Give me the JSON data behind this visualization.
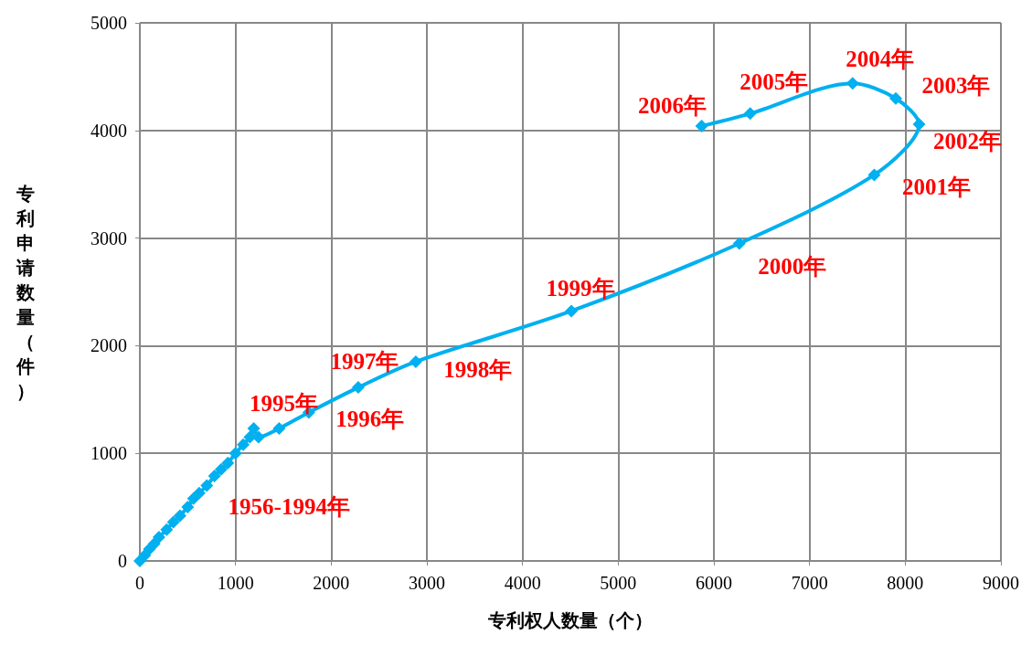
{
  "chart_data": {
    "type": "line",
    "xlabel": "专利权人数量（个）",
    "ylabel": "专利申请数量（件）",
    "x": [
      0,
      50,
      100,
      150,
      200,
      280,
      350,
      420,
      500,
      560,
      620,
      700,
      780,
      850,
      920,
      1000,
      1080,
      1150,
      1190,
      1240,
      1456,
      1766,
      2283,
      2884,
      4510,
      6266,
      7676,
      8145,
      7901,
      7450,
      6379,
      5872
    ],
    "series": [
      {
        "color": "#00b0f0",
        "values": [
          0,
          50,
          110,
          160,
          220,
          290,
          360,
          420,
          500,
          580,
          630,
          700,
          790,
          850,
          910,
          1000,
          1080,
          1150,
          1230,
          1150,
          1231,
          1380,
          1612,
          1851,
          2322,
          2950,
          3587,
          4058,
          4298,
          4438,
          4157,
          4041
        ]
      }
    ],
    "xlim": [
      0,
      9000
    ],
    "xticks": [
      0,
      1000,
      2000,
      3000,
      4000,
      5000,
      6000,
      7000,
      8000,
      9000
    ],
    "ylim": [
      0,
      5000
    ],
    "yticks": [
      0,
      1000,
      2000,
      3000,
      4000,
      5000
    ],
    "grid": true,
    "marker": "diamond",
    "line_style": "solid",
    "annotations": [
      {
        "text": "1956-1994年",
        "x": 700,
        "y": 700
      },
      {
        "text": "1995年",
        "x": 1190,
        "y": 1230
      },
      {
        "text": "1996年",
        "x": 1766,
        "y": 1380
      },
      {
        "text": "1997年",
        "x": 2283,
        "y": 1612
      },
      {
        "text": "1998年",
        "x": 2884,
        "y": 1851
      },
      {
        "text": "1999年",
        "x": 4510,
        "y": 2322
      },
      {
        "text": "2000年",
        "x": 6266,
        "y": 2950
      },
      {
        "text": "2001年",
        "x": 7676,
        "y": 3587
      },
      {
        "text": "2002年",
        "x": 8145,
        "y": 4058
      },
      {
        "text": "2003年",
        "x": 7901,
        "y": 4298
      },
      {
        "text": "2004年",
        "x": 7450,
        "y": 4438
      },
      {
        "text": "2005年",
        "x": 6379,
        "y": 4157
      },
      {
        "text": "2006年",
        "x": 5872,
        "y": 4041
      }
    ]
  }
}
